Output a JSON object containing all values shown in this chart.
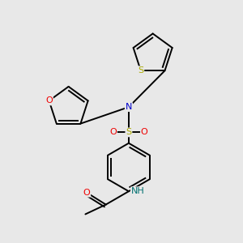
{
  "background_color": "#e8e8e8",
  "atom_colors": {
    "C": "#000000",
    "N": "#0000cc",
    "O": "#ee0000",
    "S_thio": "#aaaa00",
    "S_sulfo": "#aaaa00",
    "H": "#007070"
  },
  "bond_color": "#000000",
  "bond_width": 1.4,
  "figsize": [
    3.0,
    3.0
  ],
  "dpi": 100,
  "xlim": [
    0,
    10
  ],
  "ylim": [
    0,
    10
  ]
}
